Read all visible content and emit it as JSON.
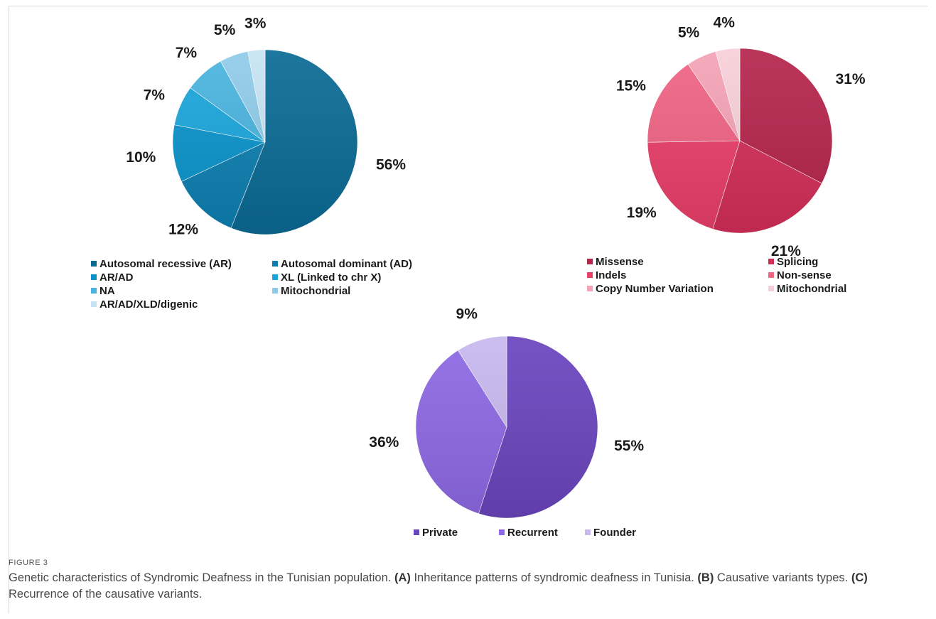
{
  "figure_label": "FIGURE 3",
  "caption": {
    "lead": "Genetic characteristics of Syndromic Deafness in the Tunisian population. ",
    "parts": [
      {
        "tag": "(A)",
        "text": " Inheritance patterns of syndromic deafness in Tunisia. "
      },
      {
        "tag": "(B)",
        "text": " Causative variants types. "
      },
      {
        "tag": "(C)",
        "text": " Recurrence of the causative variants."
      }
    ]
  },
  "chart_data": [
    {
      "type": "pie",
      "panel": "A",
      "labels": [
        "Autosomal recessive (AR)",
        "Autosomal dominant (AD)",
        "AR/AD",
        "XL (Linked to chr X)",
        "NA",
        "Mitochondrial",
        "AR/AD/XLD/digenic"
      ],
      "values": [
        56,
        12,
        10,
        7,
        7,
        5,
        3
      ],
      "value_labels": [
        "56%",
        "12%",
        "10%",
        "7%",
        "7%",
        "5%",
        "3%"
      ],
      "colors": [
        "#0a6a94",
        "#0c7fb0",
        "#0a93cb",
        "#1aa6db",
        "#4ab4df",
        "#8fcbe9",
        "#c6e3f3"
      ],
      "legend": "bottom, two columns"
    },
    {
      "type": "pie",
      "panel": "B",
      "labels": [
        "Missense",
        "Splicing",
        "Indels",
        "Non-sense",
        "Copy Number Variation",
        "Mitochondrial"
      ],
      "values": [
        31,
        21,
        19,
        15,
        5,
        4
      ],
      "value_labels": [
        "31%",
        "21%",
        "19%",
        "15%",
        "5%",
        "4%"
      ],
      "colors": [
        "#b5244b",
        "#d42e58",
        "#ea3e69",
        "#ef6383",
        "#f4a3b6",
        "#f8cfd9"
      ],
      "legend": "bottom, two columns"
    },
    {
      "type": "pie",
      "panel": "C",
      "labels": [
        "Private",
        "Recurrent",
        "Founder"
      ],
      "values": [
        55,
        36,
        9
      ],
      "value_labels": [
        "55%",
        "36%",
        "9%"
      ],
      "colors": [
        "#6a44bd",
        "#8d68e4",
        "#c7b8ee"
      ],
      "legend": "bottom, single row"
    }
  ]
}
